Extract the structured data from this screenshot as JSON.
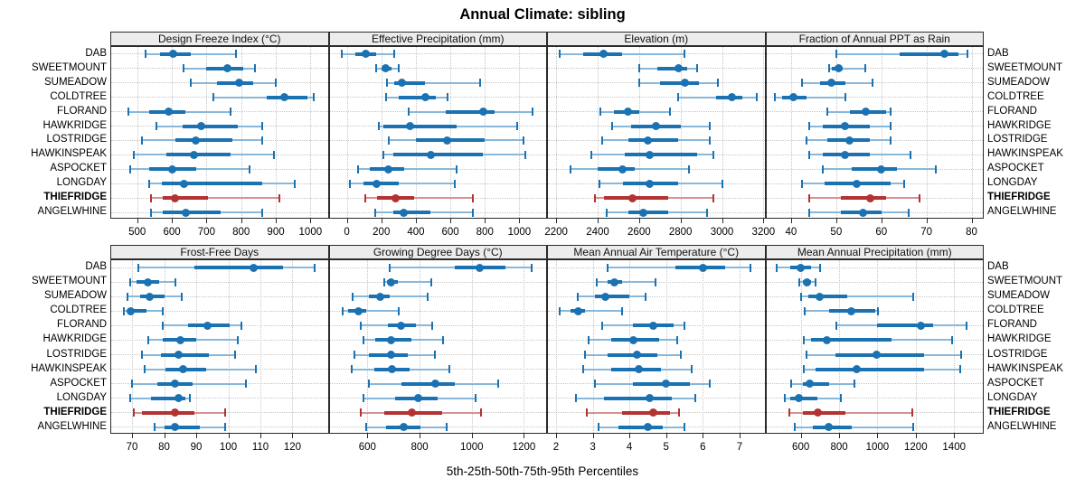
{
  "title": "Annual Climate: sibling",
  "caption": "5th-25th-50th-75th-95th Percentiles",
  "colors": {
    "series_blue": "#1b72b2",
    "series_blue_light": "#8ab8da",
    "highlight_red": "#b23331",
    "highlight_red_light": "#d79391",
    "gridline": "#c6c6c6",
    "panel_border": "#2b2b2b",
    "strip_background": "#ececec"
  },
  "chart_data": {
    "type": "dotplot-percentile-intervals",
    "title": "Annual Climate: sibling",
    "caption": "5th-25th-50th-75th-95th Percentiles",
    "percentiles": [
      5,
      25,
      50,
      75,
      95
    ],
    "legend_position": "none",
    "grid": "dotted",
    "labels_both_sides": true,
    "grid_rows": 2,
    "grid_cols": 4,
    "sites": [
      "DAB",
      "SWEETMOUNT",
      "SUMEADOW",
      "COLDTREE",
      "FLORAND",
      "HAWKRIDGE",
      "LOSTRIDGE",
      "HAWKINSPEAK",
      "ASPOCKET",
      "LONGDAY",
      "THIEFRIDGE",
      "ANGELWHINE"
    ],
    "highlight_site": "THIEFRIDGE",
    "panels": [
      {
        "title": "Design Freeze Index (°C)",
        "ticks": [
          500,
          600,
          700,
          800,
          900,
          1000
        ],
        "range": [
          425,
          1050
        ],
        "values": {
          "DAB": [
            525,
            565,
            605,
            655,
            785
          ],
          "SWEETMOUNT": [
            635,
            700,
            760,
            805,
            840
          ],
          "SUMEADOW": [
            655,
            730,
            795,
            835,
            900
          ],
          "COLDTREE": [
            720,
            875,
            925,
            990,
            1010
          ],
          "FLORAND": [
            475,
            535,
            590,
            640,
            770
          ],
          "HAWKRIDGE": [
            555,
            630,
            685,
            790,
            860
          ],
          "LOSTRIDGE": [
            515,
            610,
            670,
            775,
            860
          ],
          "HAWKINSPEAK": [
            490,
            585,
            665,
            770,
            895
          ],
          "ASPOCKET": [
            480,
            535,
            600,
            670,
            825
          ],
          "LONGDAY": [
            535,
            570,
            635,
            860,
            955
          ],
          "THIEFRIDGE": [
            540,
            575,
            610,
            705,
            910
          ],
          "ANGELWHINE": [
            540,
            575,
            640,
            740,
            860
          ]
        }
      },
      {
        "title": "Effective Precipitation (mm)",
        "ticks": [
          0,
          200,
          400,
          600,
          800,
          1000
        ],
        "range": [
          -100,
          1155
        ],
        "values": {
          "DAB": [
            -30,
            50,
            110,
            170,
            275
          ],
          "SWEETMOUNT": [
            170,
            200,
            225,
            260,
            300
          ],
          "SUMEADOW": [
            235,
            275,
            320,
            455,
            770
          ],
          "COLDTREE": [
            225,
            300,
            455,
            515,
            585
          ],
          "FLORAND": [
            360,
            575,
            790,
            855,
            1075
          ],
          "HAWKRIDGE": [
            185,
            210,
            365,
            635,
            985
          ],
          "LOSTRIDGE": [
            245,
            400,
            580,
            800,
            1025
          ],
          "HAWKINSPEAK": [
            210,
            270,
            485,
            790,
            1035
          ],
          "ASPOCKET": [
            65,
            135,
            240,
            330,
            635
          ],
          "LONGDAY": [
            20,
            95,
            175,
            300,
            625
          ],
          "THIEFRIDGE": [
            105,
            175,
            285,
            390,
            730
          ],
          "ANGELWHINE": [
            165,
            270,
            330,
            485,
            730
          ]
        }
      },
      {
        "title": "Elevation (m)",
        "ticks": [
          2200,
          2400,
          2600,
          2800,
          3000,
          3200
        ],
        "range": [
          2160,
          3205
        ],
        "values": {
          "DAB": [
            2215,
            2330,
            2430,
            2520,
            2820
          ],
          "SWEETMOUNT": [
            2600,
            2690,
            2790,
            2830,
            2880
          ],
          "SUMEADOW": [
            2600,
            2700,
            2820,
            2890,
            2980
          ],
          "COLDTREE": [
            2790,
            2970,
            3050,
            3100,
            3170
          ],
          "FLORAND": [
            2415,
            2480,
            2545,
            2600,
            2750
          ],
          "HAWKRIDGE": [
            2470,
            2560,
            2680,
            2800,
            2940
          ],
          "LOSTRIDGE": [
            2420,
            2550,
            2640,
            2790,
            2940
          ],
          "HAWKINSPEAK": [
            2370,
            2530,
            2650,
            2880,
            2960
          ],
          "ASPOCKET": [
            2270,
            2400,
            2520,
            2580,
            2840
          ],
          "LONGDAY": [
            2410,
            2520,
            2650,
            2790,
            3000
          ],
          "THIEFRIDGE": [
            2385,
            2430,
            2570,
            2740,
            2960
          ],
          "ANGELWHINE": [
            2445,
            2550,
            2620,
            2740,
            2930
          ]
        }
      },
      {
        "title": "Fraction of Annual PPT as Rain",
        "ticks": [
          40,
          50,
          60,
          70,
          80
        ],
        "range": [
          34.5,
          82.5
        ],
        "values": {
          "DAB": [
            50,
            64,
            74,
            77,
            79
          ],
          "SWEETMOUNT": [
            48.5,
            49,
            50.5,
            51.5,
            56.5
          ],
          "SUMEADOW": [
            42.5,
            46.5,
            49,
            52,
            58
          ],
          "COLDTREE": [
            36.5,
            38,
            40.5,
            43.5,
            52
          ],
          "FLORAND": [
            48,
            53,
            56.5,
            61,
            62
          ],
          "HAWKRIDGE": [
            44,
            47,
            52,
            57.5,
            62
          ],
          "LOSTRIDGE": [
            43.5,
            48,
            53,
            57.5,
            62
          ],
          "HAWKINSPEAK": [
            44,
            47,
            52,
            57.5,
            66.5
          ],
          "ASPOCKET": [
            47,
            53.5,
            60,
            63.5,
            72
          ],
          "LONGDAY": [
            42.5,
            47.5,
            54.5,
            62,
            65
          ],
          "THIEFRIDGE": [
            44,
            51,
            57.5,
            61,
            68.5
          ],
          "ANGELWHINE": [
            44,
            51,
            56,
            60,
            66
          ]
        }
      },
      {
        "title": "Frost-Free Days",
        "ticks": [
          70,
          80,
          90,
          100,
          110,
          120
        ],
        "range": [
          63.5,
          131
        ],
        "values": {
          "DAB": [
            72,
            89.5,
            108,
            117,
            127
          ],
          "SWEETMOUNT": [
            69.5,
            71.5,
            75,
            78.5,
            83.5
          ],
          "SUMEADOW": [
            68.5,
            72.5,
            75.5,
            80,
            85.5
          ],
          "COLDTREE": [
            67.5,
            68.5,
            69.5,
            74.5,
            79.5
          ],
          "FLORAND": [
            79.5,
            87.5,
            93.5,
            100.5,
            104
          ],
          "HAWKRIDGE": [
            75,
            79.5,
            85,
            90,
            103
          ],
          "LOSTRIDGE": [
            73,
            79,
            84.5,
            94,
            102
          ],
          "HAWKINSPEAK": [
            74,
            80.5,
            86,
            93,
            108.5
          ],
          "ASPOCKET": [
            70,
            78,
            83.5,
            89,
            105.5
          ],
          "LONGDAY": [
            69.5,
            76,
            84.5,
            86.5,
            88
          ],
          "THIEFRIDGE": [
            70.5,
            73,
            83.5,
            89.5,
            99
          ],
          "ANGELWHINE": [
            77,
            80,
            83.5,
            91,
            99
          ]
        }
      },
      {
        "title": "Growing Degree Days (°C)",
        "ticks": [
          600,
          800,
          1000,
          1200
        ],
        "range": [
          455,
          1285
        ],
        "values": {
          "DAB": [
            685,
            935,
            1030,
            1130,
            1230
          ],
          "SWEETMOUNT": [
            665,
            675,
            690,
            715,
            845
          ],
          "SUMEADOW": [
            545,
            605,
            650,
            685,
            830
          ],
          "COLDTREE": [
            505,
            525,
            565,
            595,
            720
          ],
          "FLORAND": [
            575,
            680,
            730,
            785,
            850
          ],
          "HAWKRIDGE": [
            585,
            630,
            690,
            770,
            890
          ],
          "LOSTRIDGE": [
            550,
            605,
            690,
            755,
            860
          ],
          "HAWKINSPEAK": [
            540,
            625,
            695,
            760,
            915
          ],
          "ASPOCKET": [
            605,
            730,
            860,
            935,
            1100
          ],
          "LONGDAY": [
            585,
            705,
            795,
            870,
            1015
          ],
          "THIEFRIDGE": [
            575,
            665,
            770,
            885,
            1035
          ],
          "ANGELWHINE": [
            595,
            670,
            740,
            805,
            905
          ]
        }
      },
      {
        "title": "Mean Annual Air Temperature (°C)",
        "ticks": [
          2,
          3,
          4,
          5,
          6,
          7
        ],
        "range": [
          1.78,
          7.68
        ],
        "values": {
          "DAB": [
            3.4,
            5.25,
            6.0,
            6.6,
            7.3
          ],
          "SWEETMOUNT": [
            3.1,
            3.4,
            3.6,
            3.8,
            4.7
          ],
          "SUMEADOW": [
            2.6,
            3.05,
            3.35,
            4.0,
            4.45
          ],
          "COLDTREE": [
            2.1,
            2.4,
            2.6,
            2.8,
            3.8
          ],
          "FLORAND": [
            3.25,
            4.1,
            4.65,
            5.2,
            5.5
          ],
          "HAWKRIDGE": [
            2.9,
            3.5,
            4.1,
            4.8,
            5.3
          ],
          "LOSTRIDGE": [
            2.8,
            3.4,
            4.2,
            4.75,
            5.4
          ],
          "HAWKINSPEAK": [
            2.75,
            3.5,
            4.25,
            4.85,
            5.7
          ],
          "ASPOCKET": [
            3.05,
            4.1,
            5.0,
            5.65,
            6.2
          ],
          "LONGDAY": [
            2.55,
            3.3,
            4.55,
            5.15,
            5.8
          ],
          "THIEFRIDGE": [
            2.85,
            3.8,
            4.65,
            5.1,
            5.35
          ],
          "ANGELWHINE": [
            3.15,
            3.7,
            4.5,
            4.9,
            5.5
          ]
        }
      },
      {
        "title": "Mean Annual Precipitation (mm)",
        "ticks": [
          600,
          800,
          1000,
          1200,
          1400
        ],
        "range": [
          420,
          1550
        ],
        "values": {
          "DAB": [
            475,
            545,
            600,
            655,
            700
          ],
          "SWEETMOUNT": [
            590,
            610,
            630,
            655,
            675
          ],
          "SUMEADOW": [
            600,
            640,
            700,
            840,
            1185
          ],
          "COLDTREE": [
            620,
            750,
            865,
            990,
            1005
          ],
          "FLORAND": [
            785,
            1000,
            1225,
            1290,
            1465
          ],
          "HAWKRIDGE": [
            615,
            655,
            735,
            1075,
            1390
          ],
          "LOSTRIDGE": [
            630,
            780,
            995,
            1245,
            1435
          ],
          "HAWKINSPEAK": [
            615,
            675,
            890,
            1245,
            1430
          ],
          "ASPOCKET": [
            550,
            610,
            645,
            750,
            880
          ],
          "LONGDAY": [
            515,
            545,
            590,
            685,
            810
          ],
          "THIEFRIDGE": [
            540,
            610,
            690,
            835,
            1180
          ],
          "ANGELWHINE": [
            570,
            665,
            745,
            865,
            1185
          ]
        }
      }
    ]
  }
}
